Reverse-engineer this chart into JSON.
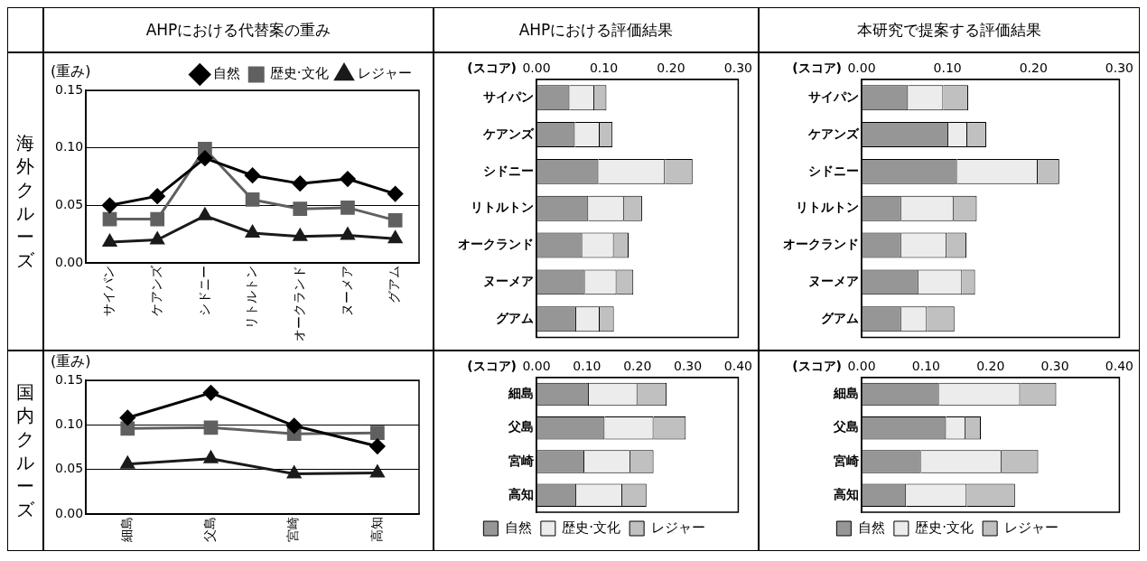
{
  "chart_data": [
    {
      "type": "line",
      "title": "AHPにおける代替案の重み",
      "ylabel": "(重み)",
      "annotations": [
        "海外クルーズ"
      ],
      "categories": [
        "サイパン",
        "ケアンズ",
        "シドニー",
        "リトルトン",
        "オークランド",
        "ヌーメア",
        "グアム"
      ],
      "series": [
        {
          "name": "自然",
          "color": "#000000",
          "marker": "diamond",
          "values": [
            0.05,
            0.058,
            0.091,
            0.076,
            0.069,
            0.073,
            0.06
          ]
        },
        {
          "name": "歴史·文化",
          "color": "#606060",
          "marker": "square",
          "values": [
            0.038,
            0.038,
            0.099,
            0.055,
            0.047,
            0.048,
            0.037
          ]
        },
        {
          "name": "レジャー",
          "color": "#1a1a1a",
          "marker": "triangle",
          "values": [
            0.018,
            0.02,
            0.041,
            0.026,
            0.023,
            0.024,
            0.021
          ]
        }
      ],
      "ylim": [
        0,
        0.15
      ],
      "yticks": [
        {
          "value": 0,
          "label": "0.00"
        },
        {
          "value": 0.05,
          "label": "0.05"
        },
        {
          "value": 0.1,
          "label": "0.10"
        },
        {
          "value": 0.15,
          "label": "0.15"
        }
      ],
      "grid": "y",
      "legend": "top right"
    },
    {
      "type": "bar",
      "orientation": "horizontal",
      "stacked": true,
      "title": "AHPにおける評価結果",
      "xlabel": "(スコア)",
      "categories": [
        "サイパン",
        "ケアンズ",
        "シドニー",
        "リトルトン",
        "オークランド",
        "ヌーメア",
        "グアム"
      ],
      "series": [
        {
          "color": "#969696",
          "values": [
            0.049,
            0.057,
            0.092,
            0.077,
            0.068,
            0.072,
            0.059
          ]
        },
        {
          "color": "#ececec",
          "values": [
            0.037,
            0.037,
            0.099,
            0.053,
            0.047,
            0.047,
            0.035
          ]
        },
        {
          "color": "#c0c0c0",
          "values": [
            0.018,
            0.019,
            0.041,
            0.027,
            0.022,
            0.025,
            0.021
          ]
        }
      ],
      "xlim": [
        0,
        0.3
      ],
      "xticks": [
        {
          "value": 0,
          "label": "0.00"
        },
        {
          "value": 0.1,
          "label": "0.10"
        },
        {
          "value": 0.2,
          "label": "0.20"
        },
        {
          "value": 0.3,
          "label": "0.30"
        }
      ]
    },
    {
      "type": "bar",
      "orientation": "horizontal",
      "stacked": true,
      "title": "本研究で提案する評価結果",
      "xlabel": "(スコア)",
      "categories": [
        "サイパン",
        "ケアンズ",
        "シドニー",
        "リトルトン",
        "オークランド",
        "ヌーメア",
        "グアム"
      ],
      "series": [
        {
          "color": "#969696",
          "values": [
            0.054,
            0.101,
            0.111,
            0.046,
            0.046,
            0.066,
            0.046
          ]
        },
        {
          "color": "#ececec",
          "values": [
            0.041,
            0.022,
            0.094,
            0.061,
            0.053,
            0.051,
            0.03
          ]
        },
        {
          "color": "#c0c0c0",
          "values": [
            0.029,
            0.022,
            0.025,
            0.027,
            0.023,
            0.015,
            0.032
          ]
        }
      ],
      "xlim": [
        0,
        0.3
      ],
      "xticks": [
        {
          "value": 0,
          "label": "0.00"
        },
        {
          "value": 0.1,
          "label": "0.10"
        },
        {
          "value": 0.2,
          "label": "0.20"
        },
        {
          "value": 0.3,
          "label": "0.30"
        }
      ]
    },
    {
      "type": "line",
      "ylabel": "(重み)",
      "annotations": [
        "国内クルーズ"
      ],
      "categories": [
        "細島",
        "父島",
        "宮崎",
        "高知"
      ],
      "series": [
        {
          "color": "#000000",
          "marker": "diamond",
          "values": [
            0.108,
            0.136,
            0.099,
            0.076
          ]
        },
        {
          "color": "#606060",
          "marker": "square",
          "values": [
            0.096,
            0.097,
            0.09,
            0.091
          ]
        },
        {
          "color": "#1a1a1a",
          "marker": "triangle",
          "values": [
            0.056,
            0.062,
            0.045,
            0.046
          ]
        }
      ],
      "ylim": [
        0,
        0.15
      ],
      "yticks": [
        {
          "value": 0,
          "label": "0.00"
        },
        {
          "value": 0.05,
          "label": "0.05"
        },
        {
          "value": 0.1,
          "label": "0.10"
        },
        {
          "value": 0.15,
          "label": "0.15"
        }
      ],
      "grid": "y"
    },
    {
      "type": "bar",
      "orientation": "horizontal",
      "stacked": true,
      "xlabel": "(スコア)",
      "categories": [
        "細島",
        "父島",
        "宮崎",
        "高知"
      ],
      "series": [
        {
          "name": "自然",
          "color": "#969696",
          "values": [
            0.104,
            0.135,
            0.095,
            0.079
          ]
        },
        {
          "name": "歴史·文化",
          "color": "#ececec",
          "values": [
            0.096,
            0.097,
            0.091,
            0.091
          ]
        },
        {
          "name": "レジャー",
          "color": "#c0c0c0",
          "values": [
            0.058,
            0.064,
            0.046,
            0.048
          ]
        }
      ],
      "xlim": [
        0,
        0.4
      ],
      "xticks": [
        {
          "value": 0,
          "label": "0.00"
        },
        {
          "value": 0.1,
          "label": "0.10"
        },
        {
          "value": 0.2,
          "label": "0.20"
        },
        {
          "value": 0.3,
          "label": "0.30"
        },
        {
          "value": 0.4,
          "label": "0.40"
        }
      ],
      "legend": "bottom"
    },
    {
      "type": "bar",
      "orientation": "horizontal",
      "stacked": true,
      "xlabel": "(スコア)",
      "categories": [
        "細島",
        "父島",
        "宮崎",
        "高知"
      ],
      "series": [
        {
          "name": "自然",
          "color": "#969696",
          "values": [
            0.12,
            0.131,
            0.092,
            0.069
          ]
        },
        {
          "name": "歴史·文化",
          "color": "#ececec",
          "values": [
            0.126,
            0.03,
            0.125,
            0.094
          ]
        },
        {
          "name": "レジャー",
          "color": "#c0c0c0",
          "values": [
            0.056,
            0.024,
            0.057,
            0.075
          ]
        }
      ],
      "xlim": [
        0,
        0.4
      ],
      "xticks": [
        {
          "value": 0,
          "label": "0.00"
        },
        {
          "value": 0.1,
          "label": "0.10"
        },
        {
          "value": 0.2,
          "label": "0.20"
        },
        {
          "value": 0.3,
          "label": "0.30"
        },
        {
          "value": 0.4,
          "label": "0.40"
        }
      ],
      "legend": "bottom"
    }
  ]
}
